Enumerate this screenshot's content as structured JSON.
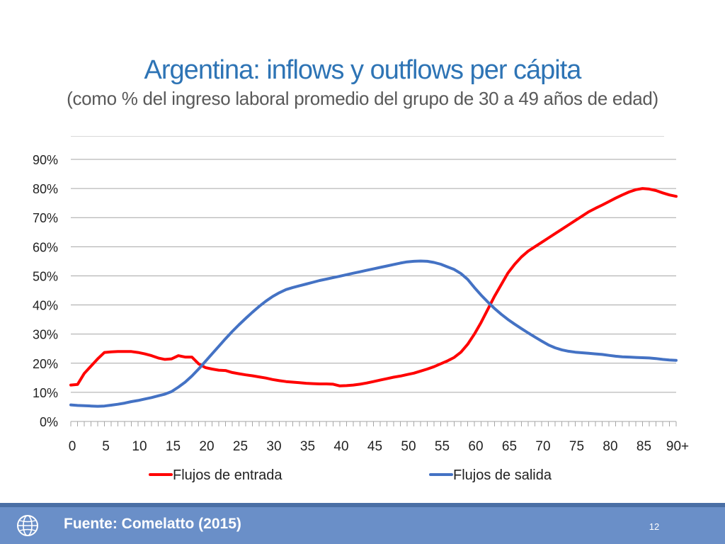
{
  "slide": {
    "title": "Argentina: inflows y outflows per cápita",
    "subtitle": "(como % del ingreso laboral promedio del grupo de 30 a 49 años de edad)",
    "source": "Fuente: Comelatto (2015)",
    "page_number": "12"
  },
  "colors": {
    "title": "#2e74b5",
    "series_inflow": "#ff0000",
    "series_outflow": "#4472c4",
    "footer": "#6a8fc8"
  },
  "chart_data": {
    "type": "line",
    "title": "",
    "xlabel": "",
    "ylabel": "",
    "x": [
      0,
      1,
      2,
      3,
      4,
      5,
      6,
      7,
      8,
      9,
      10,
      11,
      12,
      13,
      14,
      15,
      16,
      17,
      18,
      19,
      20,
      21,
      22,
      23,
      24,
      25,
      26,
      27,
      28,
      29,
      30,
      31,
      32,
      33,
      34,
      35,
      36,
      37,
      38,
      39,
      40,
      41,
      42,
      43,
      44,
      45,
      46,
      47,
      48,
      49,
      50,
      51,
      52,
      53,
      54,
      55,
      56,
      57,
      58,
      59,
      60,
      61,
      62,
      63,
      64,
      65,
      66,
      67,
      68,
      69,
      70,
      71,
      72,
      73,
      74,
      75,
      76,
      77,
      78,
      79,
      80,
      81,
      82,
      83,
      84,
      85,
      86,
      87,
      88,
      89,
      90
    ],
    "x_tick_positions": [
      0,
      5,
      10,
      15,
      20,
      25,
      30,
      35,
      40,
      45,
      50,
      55,
      60,
      65,
      70,
      75,
      80,
      85,
      90
    ],
    "x_tick_labels": [
      "0",
      "5",
      "10",
      "15",
      "20",
      "25",
      "30",
      "35",
      "40",
      "45",
      "50",
      "55",
      "60",
      "65",
      "70",
      "75",
      "80",
      "85",
      "90+"
    ],
    "ylim": [
      0,
      90
    ],
    "y_ticks": [
      0,
      10,
      20,
      30,
      40,
      50,
      60,
      70,
      80,
      90
    ],
    "y_tick_labels": [
      "0%",
      "10%",
      "20%",
      "30%",
      "40%",
      "50%",
      "60%",
      "70%",
      "80%",
      "90%"
    ],
    "grid": true,
    "legend_position": "bottom",
    "series": [
      {
        "name": "Flujos de entrada",
        "color": "#ff0000",
        "values": [
          12.5,
          12.7,
          16.5,
          19,
          21.5,
          23.7,
          23.9,
          24,
          24,
          24,
          23.7,
          23.2,
          22.6,
          21.8,
          21.3,
          21.5,
          22.6,
          22.1,
          22.1,
          19.8,
          18.5,
          18,
          17.6,
          17.5,
          16.8,
          16.4,
          16,
          15.7,
          15.3,
          14.9,
          14.4,
          14,
          13.7,
          13.5,
          13.3,
          13.1,
          13,
          12.9,
          12.9,
          12.8,
          12.2,
          12.3,
          12.5,
          12.8,
          13.2,
          13.7,
          14.2,
          14.7,
          15.2,
          15.6,
          16.1,
          16.6,
          17.3,
          18,
          18.8,
          19.8,
          20.8,
          22,
          23.8,
          26.5,
          30,
          34,
          38.5,
          43,
          47,
          51,
          54,
          56.5,
          58.5,
          60,
          61.5,
          63,
          64.5,
          66,
          67.5,
          69,
          70.5,
          72,
          73.2,
          74.3,
          75.5,
          76.7,
          77.8,
          78.8,
          79.6,
          80,
          79.8,
          79.3,
          78.5,
          77.8,
          77.3
        ]
      },
      {
        "name": "Flujos de salida",
        "color": "#4472c4",
        "values": [
          5.7,
          5.5,
          5.4,
          5.3,
          5.2,
          5.3,
          5.6,
          5.9,
          6.3,
          6.8,
          7.2,
          7.7,
          8.2,
          8.8,
          9.4,
          10.3,
          11.8,
          13.5,
          15.6,
          18,
          20.6,
          23.2,
          25.8,
          28.4,
          30.9,
          33.2,
          35.4,
          37.5,
          39.5,
          41.3,
          42.9,
          44.2,
          45.3,
          46,
          46.6,
          47.2,
          47.8,
          48.4,
          48.9,
          49.4,
          49.9,
          50.4,
          50.9,
          51.4,
          51.9,
          52.4,
          52.9,
          53.4,
          53.9,
          54.4,
          54.8,
          55,
          55.1,
          55,
          54.6,
          54,
          53.1,
          52.2,
          50.8,
          48.8,
          46,
          43.4,
          41,
          38.8,
          36.8,
          35,
          33.4,
          31.9,
          30.4,
          29,
          27.6,
          26.3,
          25.3,
          24.6,
          24.1,
          23.8,
          23.6,
          23.4,
          23.2,
          23,
          22.7,
          22.4,
          22.2,
          22.1,
          22,
          21.9,
          21.8,
          21.6,
          21.3,
          21.1,
          21
        ]
      }
    ]
  }
}
